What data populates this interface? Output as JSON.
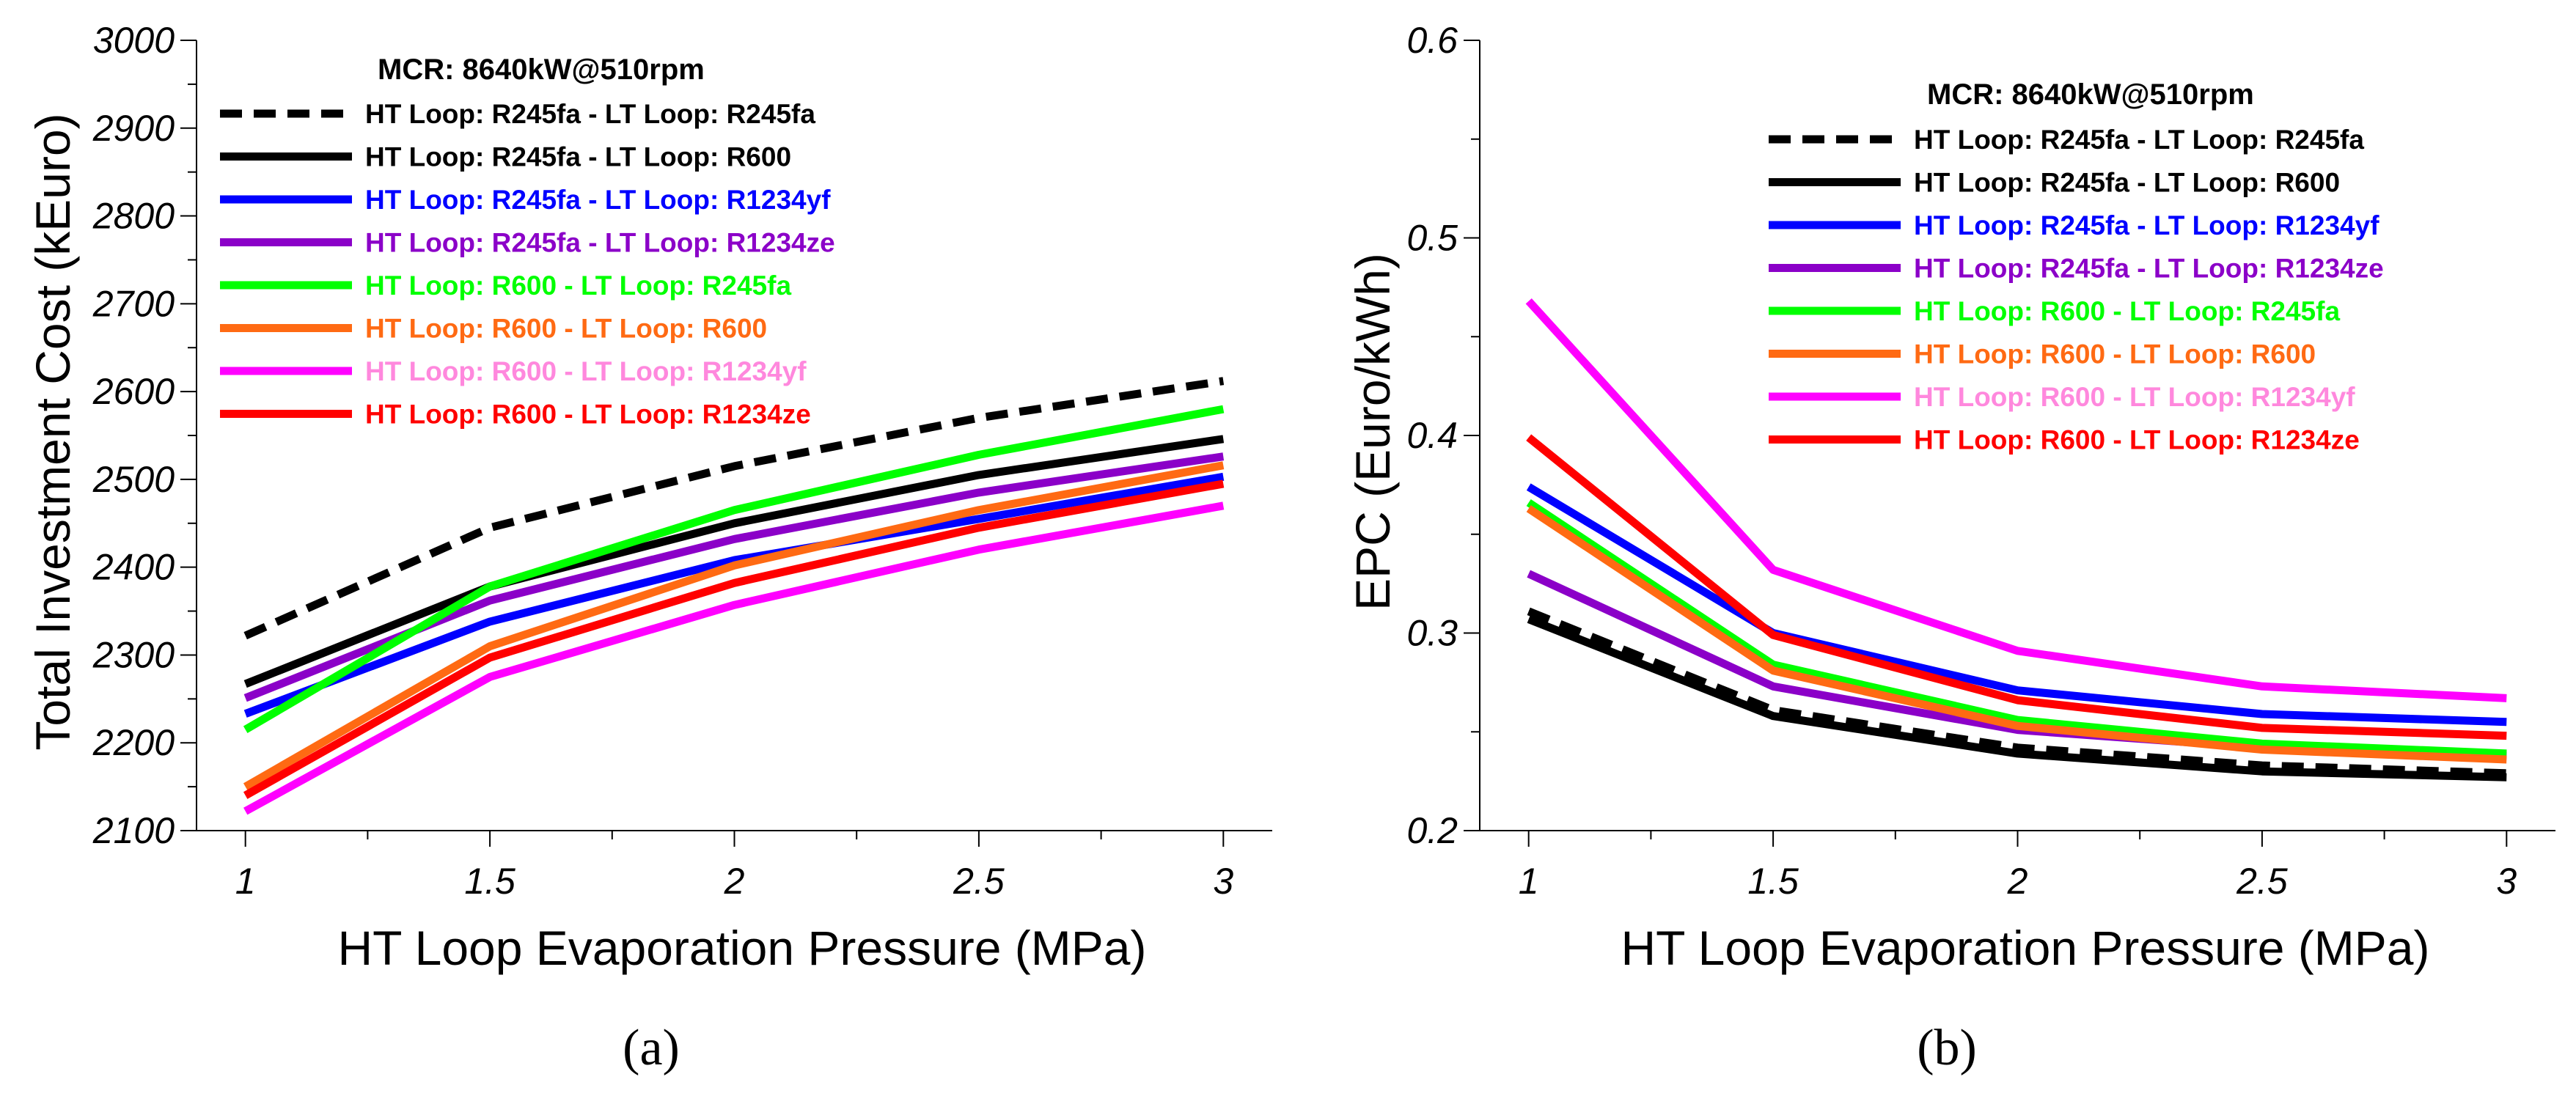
{
  "chart_data": [
    {
      "type": "line",
      "panel": "a",
      "caption": "(a)",
      "title": "MCR: 8640kW@510rpm",
      "xlabel": "HT Loop Evaporation Pressure (MPa)",
      "ylabel": "Total Investment Cost (kEuro)",
      "xlim": [
        0.9,
        3.1
      ],
      "ylim": [
        2100,
        3000
      ],
      "xticks": [
        1,
        1.5,
        2,
        2.5,
        3
      ],
      "xtick_labels": [
        "1",
        "1.5",
        "2",
        "2.5",
        "3"
      ],
      "yticks": [
        2100,
        2200,
        2300,
        2400,
        2500,
        2600,
        2700,
        2800,
        2900,
        3000
      ],
      "ytick_labels": [
        "2100",
        "2200",
        "2300",
        "2400",
        "2500",
        "2600",
        "2700",
        "2800",
        "2900",
        "3000"
      ],
      "legend_position": "top-left",
      "x": [
        1,
        1.5,
        2,
        2.5,
        3
      ],
      "series": [
        {
          "name": "HT Loop: R245fa - LT Loop: R245fa",
          "color": "#000000",
          "dashed": true,
          "values": [
            2322,
            2445,
            2515,
            2570,
            2612
          ]
        },
        {
          "name": "HT Loop: R245fa - LT Loop: R600",
          "color": "#000000",
          "dashed": false,
          "values": [
            2267,
            2378,
            2450,
            2505,
            2546
          ]
        },
        {
          "name": "HT Loop: R245fa - LT Loop: R1234yf",
          "color": "#0000ff",
          "dashed": false,
          "values": [
            2233,
            2338,
            2408,
            2455,
            2503
          ]
        },
        {
          "name": "HT Loop: R245fa - LT Loop: R1234ze",
          "color": "#8b00c8",
          "dashed": false,
          "values": [
            2251,
            2362,
            2432,
            2485,
            2526
          ]
        },
        {
          "name": "HT Loop: R600 - LT Loop: R245fa",
          "color": "#00ff00",
          "dashed": false,
          "values": [
            2215,
            2378,
            2465,
            2528,
            2580
          ]
        },
        {
          "name": "HT Loop: R600 - LT Loop: R600",
          "color": "#ff6a13",
          "dashed": false,
          "values": [
            2150,
            2310,
            2402,
            2465,
            2516
          ]
        },
        {
          "name": "HT Loop: R600 - LT Loop: R1234yf",
          "color": "#ff00ff",
          "text_color": "#ff88dd",
          "dashed": false,
          "values": [
            2122,
            2275,
            2357,
            2420,
            2470
          ]
        },
        {
          "name": "HT Loop: R600 - LT Loop: R1234ze",
          "color": "#ff0000",
          "dashed": false,
          "values": [
            2140,
            2297,
            2382,
            2445,
            2495
          ]
        }
      ]
    },
    {
      "type": "line",
      "panel": "b",
      "caption": "(b)",
      "title": "MCR: 8640kW@510rpm",
      "xlabel": "HT Loop Evaporation Pressure (MPa)",
      "ylabel": "EPC (Euro/kWh)",
      "xlim": [
        0.9,
        3.1
      ],
      "ylim": [
        0.2,
        0.6
      ],
      "xticks": [
        1,
        1.5,
        2,
        2.5,
        3
      ],
      "xtick_labels": [
        "1",
        "1.5",
        "2",
        "2.5",
        "3"
      ],
      "yticks": [
        0.2,
        0.3,
        0.4,
        0.5,
        0.6
      ],
      "ytick_labels": [
        "0.2",
        "0.3",
        "0.4",
        "0.5",
        "0.6"
      ],
      "legend_position": "top-right",
      "x": [
        1,
        1.5,
        2,
        2.5,
        3
      ],
      "series": [
        {
          "name": "HT Loop: R245fa - LT Loop: R245fa",
          "color": "#000000",
          "dashed": true,
          "values": [
            0.311,
            0.261,
            0.242,
            0.233,
            0.229
          ]
        },
        {
          "name": "HT Loop: R245fa - LT Loop: R600",
          "color": "#000000",
          "dashed": false,
          "values": [
            0.307,
            0.258,
            0.239,
            0.23,
            0.227
          ]
        },
        {
          "name": "HT Loop: R245fa - LT Loop: R1234yf",
          "color": "#0000ff",
          "dashed": false,
          "values": [
            0.374,
            0.3,
            0.271,
            0.259,
            0.255
          ]
        },
        {
          "name": "HT Loop: R245fa - LT Loop: R1234ze",
          "color": "#8b00c8",
          "dashed": false,
          "values": [
            0.33,
            0.273,
            0.251,
            0.242,
            0.238
          ]
        },
        {
          "name": "HT Loop: R600 - LT Loop: R245fa",
          "color": "#00ff00",
          "dashed": false,
          "values": [
            0.366,
            0.284,
            0.256,
            0.244,
            0.239
          ]
        },
        {
          "name": "HT Loop: R600 - LT Loop: R600",
          "color": "#ff6a13",
          "dashed": false,
          "values": [
            0.363,
            0.281,
            0.253,
            0.241,
            0.236
          ]
        },
        {
          "name": "HT Loop: R600 - LT Loop: R1234yf",
          "color": "#ff00ff",
          "text_color": "#ff88dd",
          "dashed": false,
          "values": [
            0.468,
            0.332,
            0.291,
            0.273,
            0.267
          ]
        },
        {
          "name": "HT Loop: R600 - LT Loop: R1234ze",
          "color": "#ff0000",
          "dashed": false,
          "values": [
            0.399,
            0.299,
            0.266,
            0.252,
            0.248
          ]
        }
      ]
    }
  ]
}
